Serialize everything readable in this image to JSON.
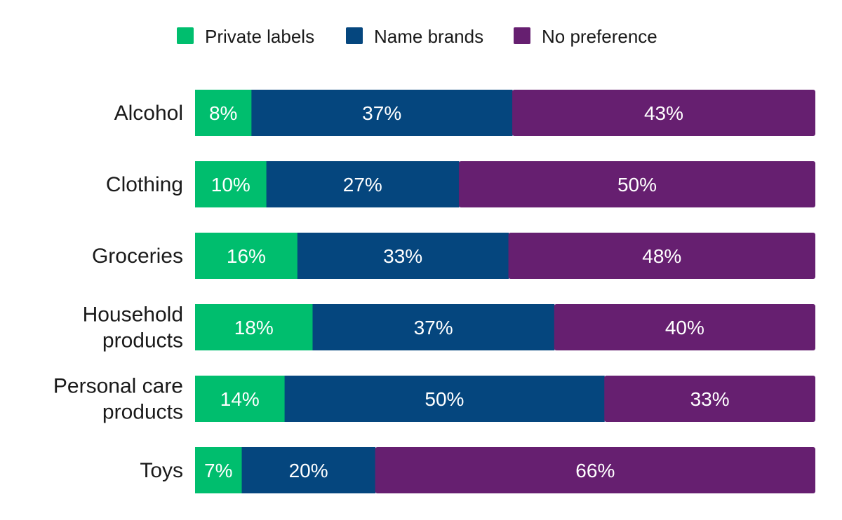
{
  "chart_data": {
    "type": "bar",
    "orientation": "horizontal",
    "stacked": true,
    "legend_position": "top",
    "grid": false,
    "categories": [
      [
        "Alcohol"
      ],
      [
        "Clothing"
      ],
      [
        "Groceries"
      ],
      [
        "Household",
        "products"
      ],
      [
        "Personal care",
        "products"
      ],
      [
        "Toys"
      ]
    ],
    "series": [
      {
        "name": "Private labels",
        "color": "#00BE6E",
        "values": [
          8,
          10,
          16,
          18,
          14,
          7
        ],
        "labels": [
          "8%",
          "10%",
          "16%",
          "18%",
          "14%",
          "7%"
        ]
      },
      {
        "name": "Name brands",
        "color": "#05467E",
        "values": [
          37,
          27,
          33,
          37,
          50,
          20
        ],
        "labels": [
          "37%",
          "27%",
          "33%",
          "37%",
          "50%",
          "20%"
        ]
      },
      {
        "name": "No preference",
        "color": "#661F70",
        "values": [
          43,
          50,
          48,
          40,
          33,
          66
        ],
        "labels": [
          "43%",
          "50%",
          "48%",
          "40%",
          "33%",
          "66%"
        ]
      }
    ]
  }
}
